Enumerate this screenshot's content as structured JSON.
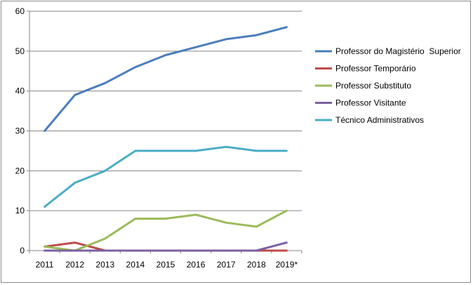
{
  "chart_data": {
    "type": "line",
    "title": "",
    "xlabel": "",
    "ylabel": "",
    "categories": [
      "2011",
      "2012",
      "2013",
      "2014",
      "2015",
      "2016",
      "2017",
      "2018",
      "2019*"
    ],
    "ylim": [
      0,
      60
    ],
    "yticks": [
      "0",
      "10",
      "20",
      "30",
      "40",
      "50",
      "60"
    ],
    "grid": true,
    "legend_position": "right",
    "series": [
      {
        "name": "Professor do Magistério  Superior",
        "color": "#4a7ebb",
        "values": [
          30,
          39,
          42,
          46,
          49,
          51,
          53,
          54,
          56
        ]
      },
      {
        "name": "Professor Temporário",
        "color": "#be4b48",
        "values": [
          1,
          2,
          0,
          0,
          0,
          0,
          0,
          0,
          0
        ]
      },
      {
        "name": "Professor Substituto",
        "color": "#9bbb59",
        "values": [
          1,
          0,
          3,
          8,
          8,
          9,
          7,
          6,
          10
        ]
      },
      {
        "name": "Professor Visitante",
        "color": "#7d60a0",
        "values": [
          0,
          0,
          0,
          0,
          0,
          0,
          0,
          0,
          2
        ]
      },
      {
        "name": "Técnico Administrativos",
        "color": "#4bacc6",
        "values": [
          11,
          17,
          20,
          25,
          25,
          25,
          26,
          25,
          25
        ]
      }
    ]
  }
}
